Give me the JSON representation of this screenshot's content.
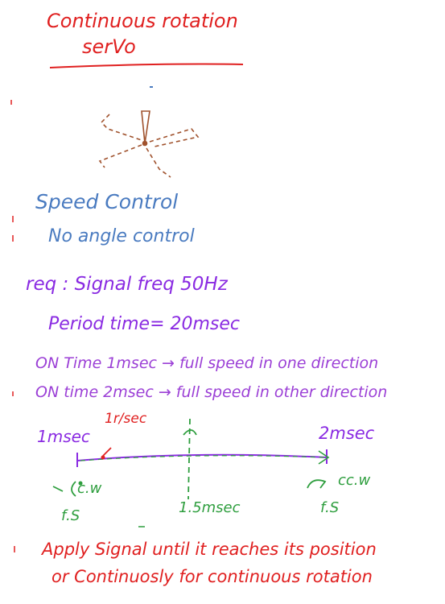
{
  "title": {
    "line1": "Continuous rotation",
    "line2": "serVo"
  },
  "notes": {
    "speed_control": "Speed Control",
    "no_angle_control": "No angle control"
  },
  "requirements": {
    "signal": "req : Signal freq 50Hz",
    "period": "Period time= 20msec",
    "on_time_1": "ON Time 1msec → full speed in one direction",
    "on_time_2": "ON time 2msec → full speed in other direction"
  },
  "diagram": {
    "label_1ms": "1msec",
    "label_rsec": "1r/sec",
    "label_2ms": "2msec",
    "label_cw": "c.w",
    "label_fs_left": "f.S",
    "label_mid": "1.5msec",
    "label_ccw": "cc.w",
    "label_fs_right": "f.S"
  },
  "footer": {
    "line1": "Apply Signal until it reaches its position",
    "line2": "or Continuosly for continuous rotation"
  },
  "colors": {
    "red": "#e02020",
    "blue": "#4a7bc0",
    "purple": "#8a2be2",
    "green": "#2e9e3e",
    "brown": "#a0522d"
  }
}
